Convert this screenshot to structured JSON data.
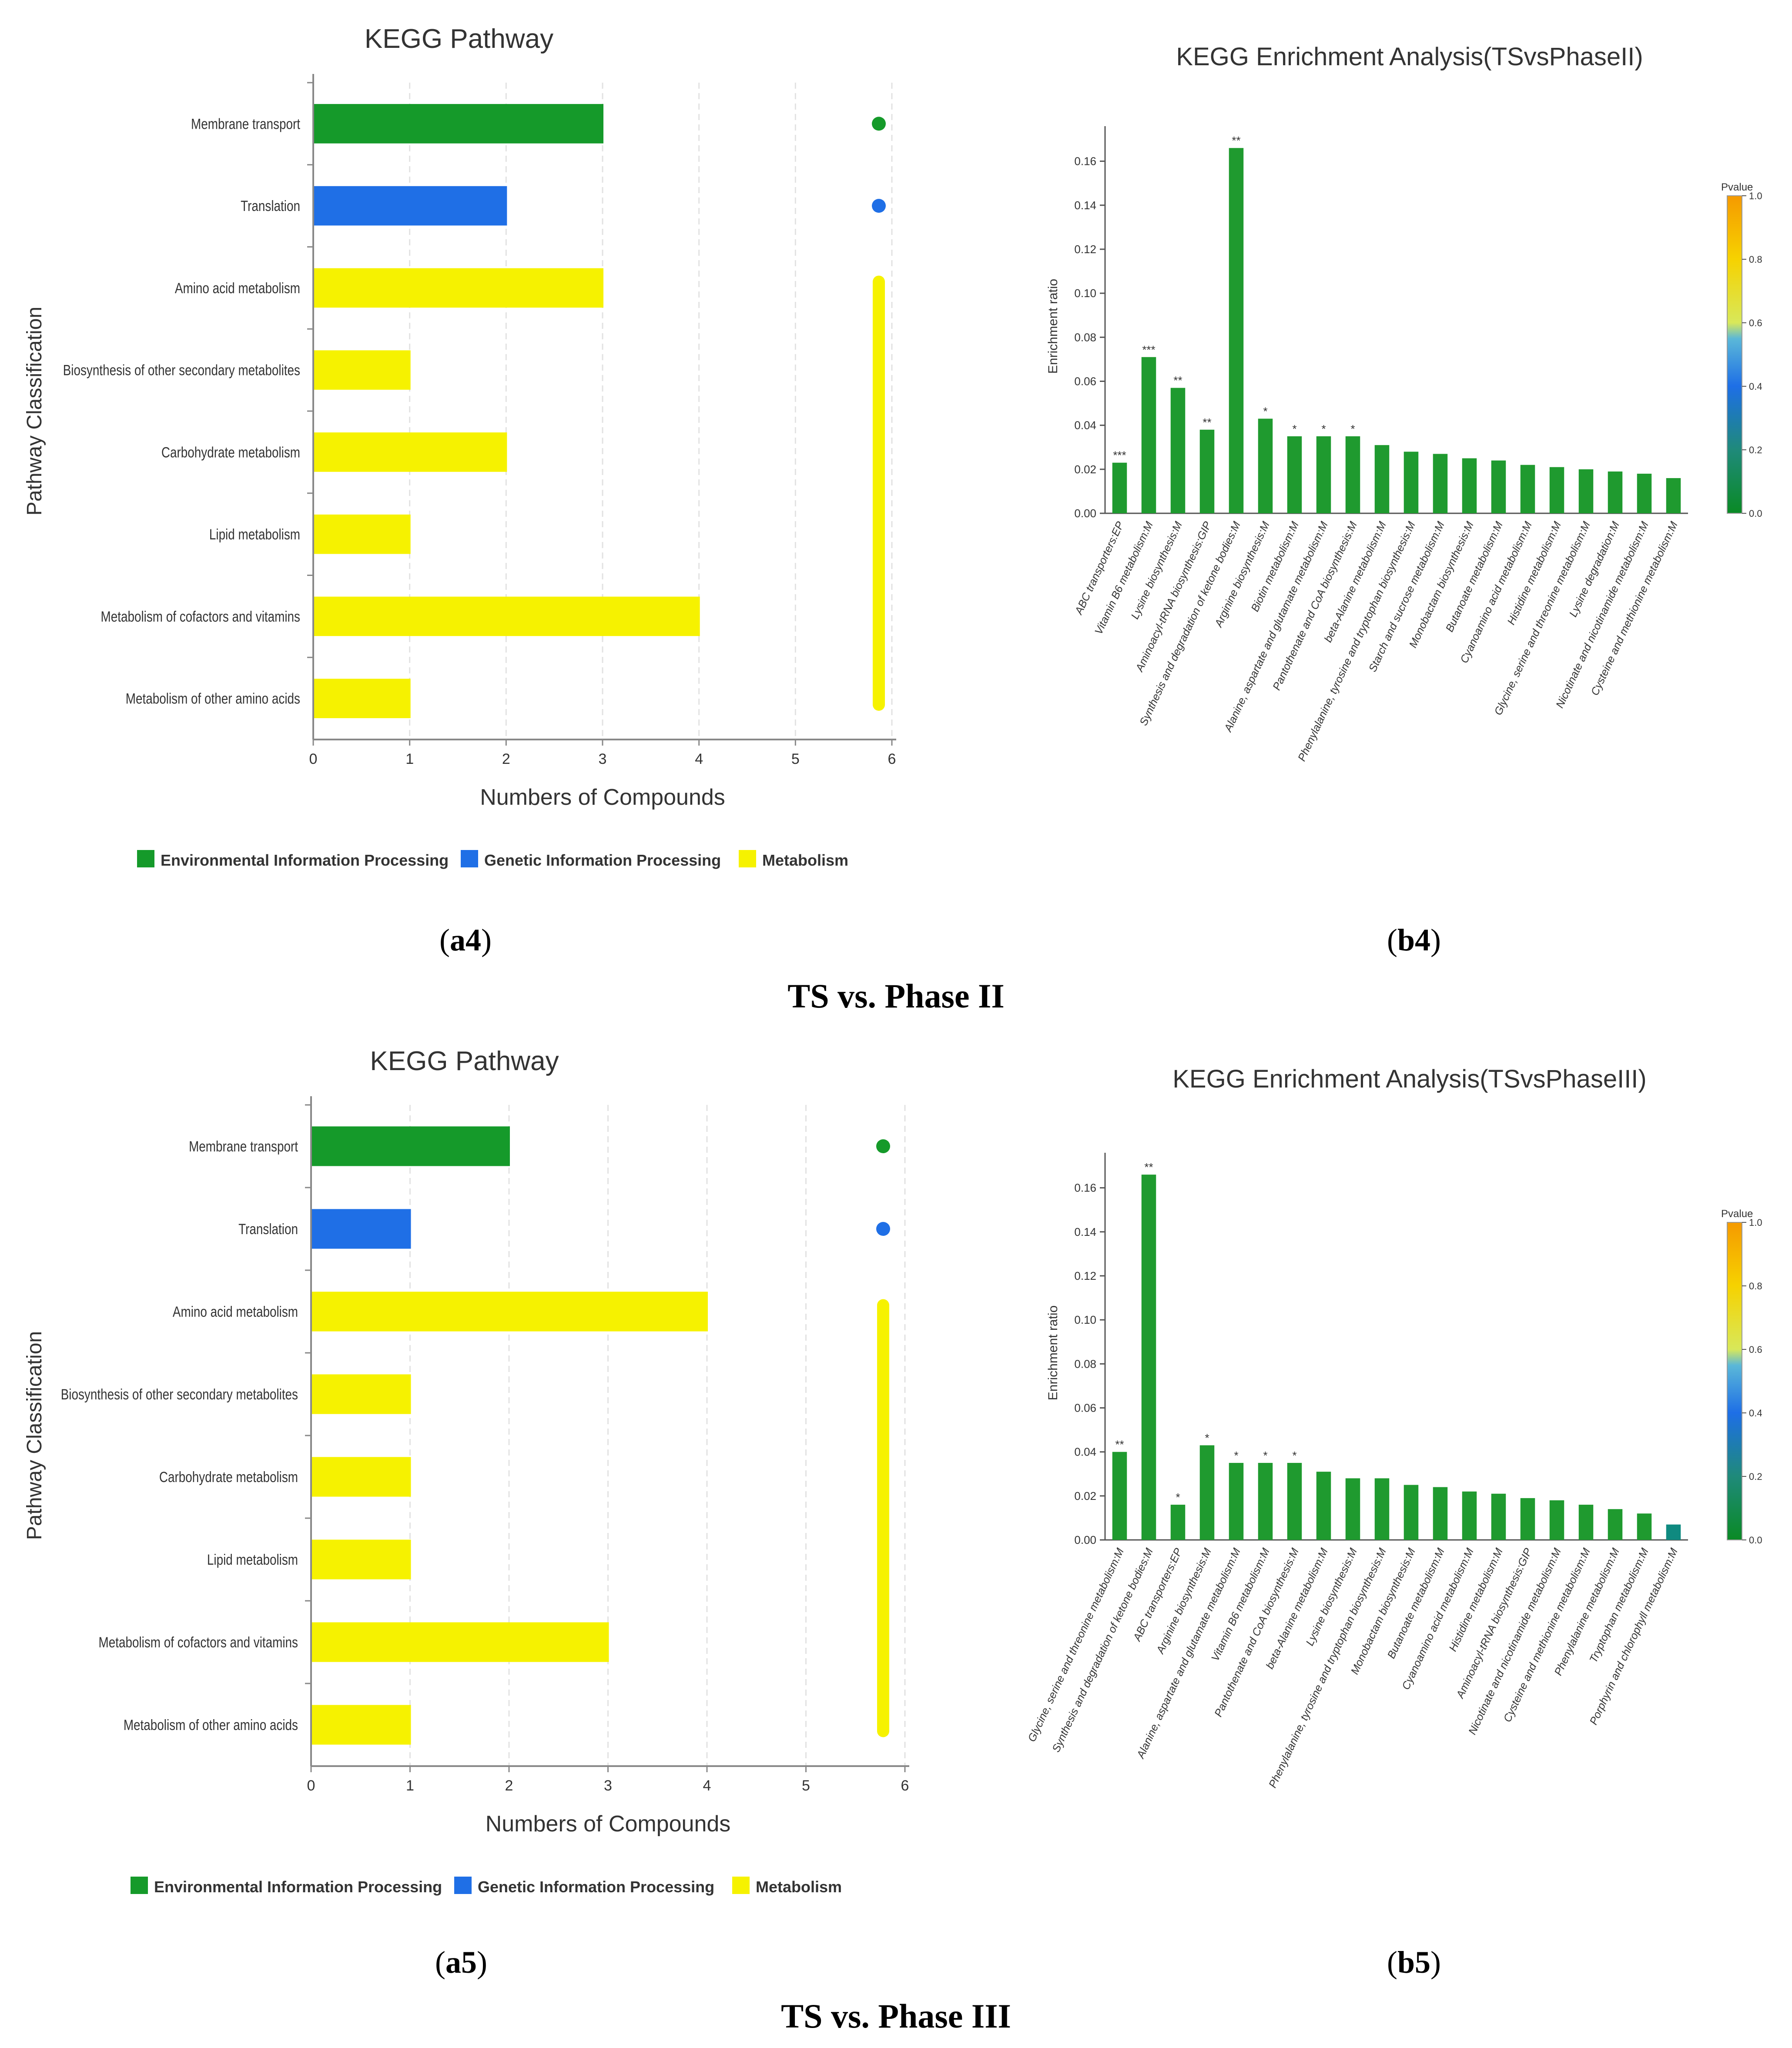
{
  "colors": {
    "environmental": "#159a2a",
    "genetic": "#1f6fe6",
    "metabolism": "#f6f200",
    "enrich_green": "#1f9a2f",
    "enrich_teal": "#0f8a80"
  },
  "sections": [
    {
      "title": "TS vs. Phase II",
      "left_caption": "a4",
      "right_caption": "b4"
    },
    {
      "title": "TS vs. Phase III",
      "left_caption": "a5",
      "right_caption": "b5"
    }
  ],
  "chart_data": [
    {
      "type": "bar",
      "orientation": "horizontal",
      "title": "KEGG Pathway",
      "xlabel": "Numbers of Compounds",
      "ylabel": "Pathway Classification",
      "xlim": [
        0,
        6
      ],
      "xticks": [
        "0",
        "1",
        "2",
        "3",
        "4",
        "5",
        "6"
      ],
      "categories": [
        "Membrane transport",
        "Translation",
        "Amino acid metabolism",
        "Biosynthesis of other secondary metabolites",
        "Carbohydrate metabolism",
        "Lipid metabolism",
        "Metabolism of cofactors and vitamins",
        "Metabolism of other amino acids"
      ],
      "values": [
        3,
        2,
        3,
        1,
        2,
        1,
        4,
        1
      ],
      "groups": [
        "environmental",
        "genetic",
        "metabolism",
        "metabolism",
        "metabolism",
        "metabolism",
        "metabolism",
        "metabolism"
      ],
      "legend": [
        {
          "key": "environmental",
          "label": "Environmental Information Processing"
        },
        {
          "key": "genetic",
          "label": "Genetic Information Processing"
        },
        {
          "key": "metabolism",
          "label": "Metabolism"
        }
      ]
    },
    {
      "type": "bar",
      "title": "KEGG Enrichment Analysis(TSvsPhaseII)",
      "ylabel": "Enrichment ratio",
      "ylim": [
        0,
        0.17
      ],
      "yticks": [
        "0.00",
        "0.02",
        "0.04",
        "0.06",
        "0.08",
        "0.10",
        "0.12",
        "0.14",
        "0.16"
      ],
      "colorbar_title": "Pvalue",
      "colorbar_ticks": [
        "0.0",
        "0.2",
        "0.4",
        "0.6",
        "0.8",
        "1.0"
      ],
      "categories": [
        "ABC transporters:EP",
        "Vitamin B6 metabolism:M",
        "Lysine biosynthesis:M",
        "Aminoacyl-tRNA biosynthesis:GIP",
        "Synthesis and degradation of ketone bodies:M",
        "Arginine biosynthesis:M",
        "Biotin metabolism:M",
        "Alanine, aspartate and glutamate metabolism:M",
        "Pantothenate and CoA biosynthesis:M",
        "beta-Alanine metabolism:M",
        "Phenylalanine, tyrosine and tryptophan biosynthesis:M",
        "Starch and sucrose metabolism:M",
        "Monobactam biosynthesis:M",
        "Butanoate metabolism:M",
        "Cyanoamino acid metabolism:M",
        "Histidine metabolism:M",
        "Glycine, serine and threonine metabolism:M",
        "Lysine degradation:M",
        "Nicotinate and nicotinamide metabolism:M",
        "Cysteine and methionine metabolism:M"
      ],
      "values": [
        0.023,
        0.071,
        0.057,
        0.038,
        0.166,
        0.043,
        0.035,
        0.035,
        0.035,
        0.031,
        0.028,
        0.027,
        0.025,
        0.024,
        0.022,
        0.021,
        0.02,
        0.019,
        0.018,
        0.016
      ],
      "significance": [
        "***",
        "***",
        "**",
        "**",
        "**",
        "*",
        "*",
        "*",
        "*",
        "",
        "",
        "",
        "",
        "",
        "",
        "",
        "",
        "",
        "",
        ""
      ],
      "bar_colors": [
        "green",
        "green",
        "green",
        "green",
        "green",
        "green",
        "green",
        "green",
        "green",
        "green",
        "green",
        "green",
        "green",
        "green",
        "green",
        "green",
        "green",
        "green",
        "green",
        "green"
      ]
    },
    {
      "type": "bar",
      "orientation": "horizontal",
      "title": "KEGG Pathway",
      "xlabel": "Numbers of Compounds",
      "ylabel": "Pathway Classification",
      "xlim": [
        0,
        6
      ],
      "xticks": [
        "0",
        "1",
        "2",
        "3",
        "4",
        "5",
        "6"
      ],
      "categories": [
        "Membrane transport",
        "Translation",
        "Amino acid metabolism",
        "Biosynthesis of other secondary metabolites",
        "Carbohydrate metabolism",
        "Lipid metabolism",
        "Metabolism of cofactors and vitamins",
        "Metabolism of other amino acids"
      ],
      "values": [
        2,
        1,
        4,
        1,
        1,
        1,
        3,
        1
      ],
      "groups": [
        "environmental",
        "genetic",
        "metabolism",
        "metabolism",
        "metabolism",
        "metabolism",
        "metabolism",
        "metabolism"
      ],
      "legend": [
        {
          "key": "environmental",
          "label": "Environmental Information Processing"
        },
        {
          "key": "genetic",
          "label": "Genetic Information Processing"
        },
        {
          "key": "metabolism",
          "label": "Metabolism"
        }
      ]
    },
    {
      "type": "bar",
      "title": "KEGG Enrichment Analysis(TSvsPhaseIII)",
      "ylabel": "Enrichment ratio",
      "ylim": [
        0,
        0.17
      ],
      "yticks": [
        "0.00",
        "0.02",
        "0.04",
        "0.06",
        "0.08",
        "0.10",
        "0.12",
        "0.14",
        "0.16"
      ],
      "colorbar_title": "Pvalue",
      "colorbar_ticks": [
        "0.0",
        "0.2",
        "0.4",
        "0.6",
        "0.8",
        "1.0"
      ],
      "categories": [
        "Glycine, serine and threonine metabolism:M",
        "Synthesis and degradation of ketone bodies:M",
        "ABC transporters:EP",
        "Arginine biosynthesis:M",
        "Alanine, aspartate and glutamate metabolism:M",
        "Vitamin B6 metabolism:M",
        "Pantothenate and CoA biosynthesis:M",
        "beta-Alanine metabolism:M",
        "Lysine biosynthesis:M",
        "Phenylalanine, tyrosine and tryptophan biosynthesis:M",
        "Monobactam biosynthesis:M",
        "Butanoate metabolism:M",
        "Cyanoamino acid metabolism:M",
        "Histidine metabolism:M",
        "Aminoacyl-tRNA biosynthesis:GIP",
        "Nicotinate and nicotinamide metabolism:M",
        "Cysteine and methionine metabolism:M",
        "Phenylalanine metabolism:M",
        "Tryptophan metabolism:M",
        "Porphyrin and chlorophyll metabolism:M"
      ],
      "values": [
        0.04,
        0.166,
        0.016,
        0.043,
        0.035,
        0.035,
        0.035,
        0.031,
        0.028,
        0.028,
        0.025,
        0.024,
        0.022,
        0.021,
        0.019,
        0.018,
        0.016,
        0.014,
        0.012,
        0.007
      ],
      "significance": [
        "**",
        "**",
        "*",
        "*",
        "*",
        "*",
        "*",
        "",
        "",
        "",
        "",
        "",
        "",
        "",
        "",
        "",
        "",
        "",
        "",
        ""
      ],
      "bar_colors": [
        "green",
        "green",
        "green",
        "green",
        "green",
        "green",
        "green",
        "green",
        "green",
        "green",
        "green",
        "green",
        "green",
        "green",
        "green",
        "green",
        "green",
        "green",
        "green",
        "teal"
      ]
    }
  ]
}
